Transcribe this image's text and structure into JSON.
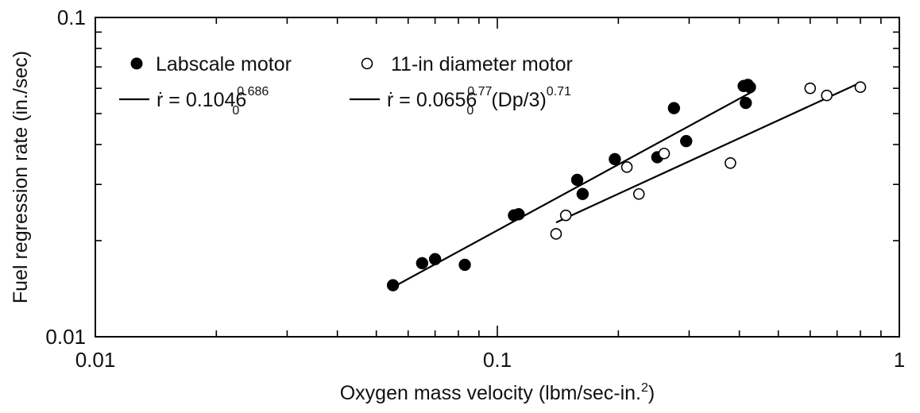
{
  "chart_data": {
    "type": "scatter",
    "xscale": "log",
    "yscale": "log",
    "xlim": [
      0.01,
      1
    ],
    "ylim": [
      0.01,
      0.1
    ],
    "xlabel": "Oxygen mass velocity (lbm/sec-in.",
    "xlabel_sup": "2",
    "xlabel_tail": ")",
    "ylabel": "Fuel regression rate (in./sec)",
    "xticks": [
      "0.01",
      "0.1",
      "1"
    ],
    "yticks": [
      "0.01",
      "0.1"
    ],
    "grid": false,
    "legend_position": "top-left",
    "series": [
      {
        "name": "Labscale motor",
        "marker": "filled-circle",
        "color": "#000000",
        "points": [
          [
            0.055,
            0.0145
          ],
          [
            0.065,
            0.017
          ],
          [
            0.07,
            0.0175
          ],
          [
            0.083,
            0.0168
          ],
          [
            0.11,
            0.024
          ],
          [
            0.113,
            0.0242
          ],
          [
            0.158,
            0.031
          ],
          [
            0.163,
            0.028
          ],
          [
            0.196,
            0.036
          ],
          [
            0.25,
            0.0365
          ],
          [
            0.275,
            0.052
          ],
          [
            0.295,
            0.041
          ],
          [
            0.41,
            0.061
          ],
          [
            0.415,
            0.054
          ],
          [
            0.42,
            0.0615
          ],
          [
            0.425,
            0.0605
          ]
        ]
      },
      {
        "name": "11-in diameter motor",
        "marker": "open-circle",
        "color": "#000000",
        "points": [
          [
            0.14,
            0.021
          ],
          [
            0.148,
            0.024
          ],
          [
            0.21,
            0.034
          ],
          [
            0.225,
            0.028
          ],
          [
            0.26,
            0.0375
          ],
          [
            0.38,
            0.035
          ],
          [
            0.6,
            0.06
          ],
          [
            0.66,
            0.057
          ],
          [
            0.8,
            0.0605
          ]
        ]
      }
    ],
    "fits": [
      {
        "label_prefix": "ṙ = 0.1046",
        "label_sub": "0",
        "label_sup": "0.686",
        "label_suffix": "",
        "label_sup2": "",
        "x_range": [
          0.055,
          0.43
        ],
        "y_range": [
          0.0143,
          0.0585
        ]
      },
      {
        "label_prefix": "ṙ = 0.0656",
        "label_sub": "0",
        "label_sup": "0.77",
        "label_suffix": "(Dp/3)",
        "label_sup2": "0.71",
        "x_range": [
          0.14,
          0.8
        ],
        "y_range": [
          0.0228,
          0.0625
        ]
      }
    ]
  }
}
